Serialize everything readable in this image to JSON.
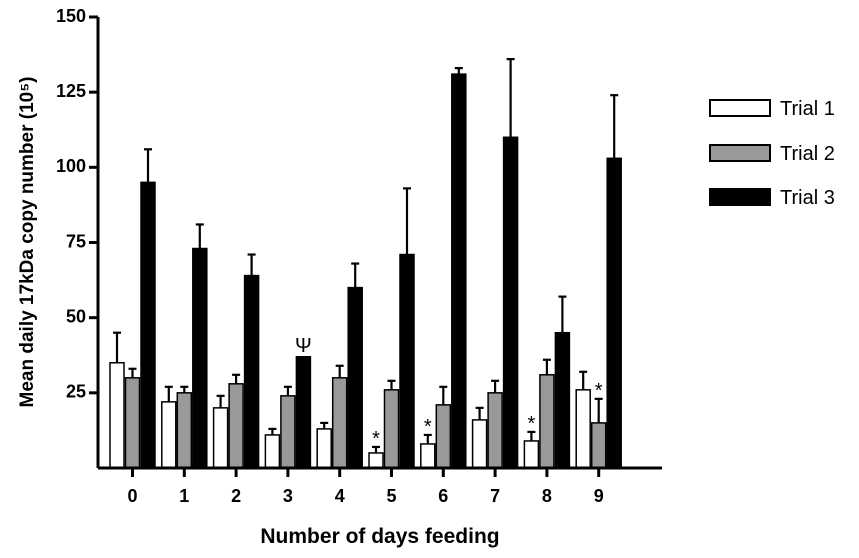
{
  "chart_data": {
    "type": "bar",
    "xlabel": "Number of days feeding",
    "ylabel": "Mean daily 17kDa copy number (10⁵)",
    "ylim": [
      0,
      150
    ],
    "yticks": [
      "25",
      "50",
      "75",
      "100",
      "125",
      "150"
    ],
    "categories": [
      "0",
      "1",
      "2",
      "3",
      "4",
      "5",
      "6",
      "7",
      "8",
      "9"
    ],
    "legend_position": "right",
    "grid": false,
    "series": [
      {
        "name": "Trial 1",
        "fill": "#ffffff",
        "values": [
          35,
          22,
          20,
          11,
          13,
          5,
          8,
          16,
          9,
          26
        ],
        "errors": [
          10,
          5,
          4,
          2,
          2,
          2,
          3,
          4,
          3,
          6
        ]
      },
      {
        "name": "Trial 2",
        "fill": "#999999",
        "values": [
          30,
          25,
          28,
          24,
          30,
          26,
          21,
          25,
          31,
          15
        ],
        "errors": [
          3,
          2,
          3,
          3,
          4,
          3,
          6,
          4,
          5,
          8
        ]
      },
      {
        "name": "Trial 3",
        "fill": "#000000",
        "values": [
          95,
          73,
          64,
          37,
          60,
          71,
          131,
          110,
          45,
          103
        ],
        "errors": [
          11,
          8,
          7,
          0,
          8,
          22,
          2,
          26,
          12,
          21
        ]
      }
    ],
    "annotations": [
      {
        "text": "Ψ",
        "category": "3",
        "series": "Trial 3"
      },
      {
        "text": "*",
        "category": "5",
        "series": "Trial 1"
      },
      {
        "text": "*",
        "category": "6",
        "series": "Trial 1"
      },
      {
        "text": "*",
        "category": "8",
        "series": "Trial 1"
      },
      {
        "text": "*",
        "category": "9",
        "series": "Trial 2"
      }
    ]
  }
}
